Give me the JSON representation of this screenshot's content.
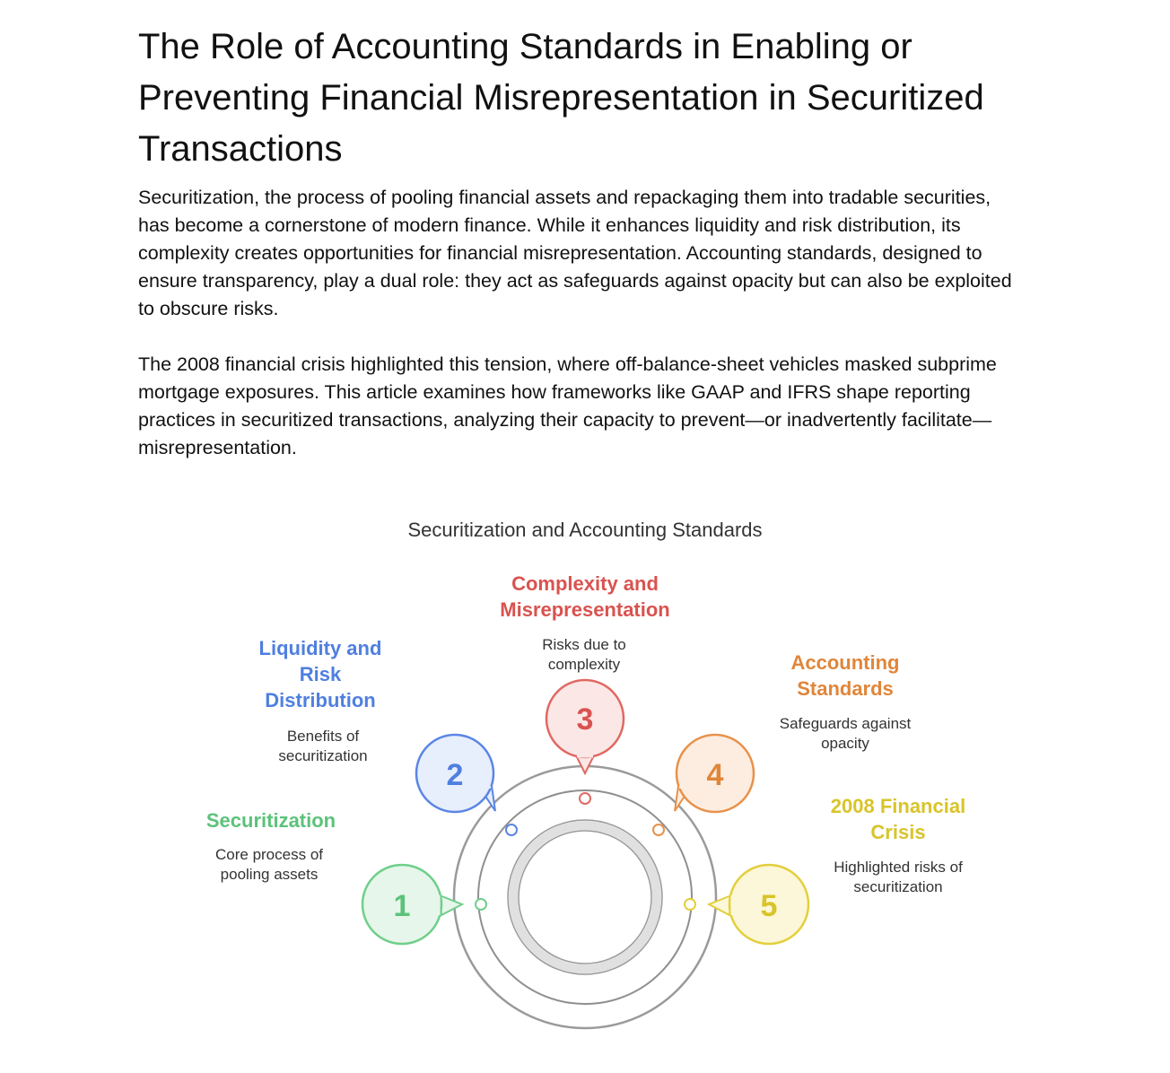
{
  "article": {
    "title": "The Role of Accounting Standards in Enabling or Preventing Financial Misrepresentation in Securitized Transactions",
    "paragraphs": [
      "Securitization, the process of pooling financial assets and repackaging them into tradable securities, has become a cornerstone of modern finance. While it enhances liquidity and risk distribution, its complexity creates opportunities for financial misrepresentation. Accounting standards, designed to ensure transparency, play a dual role: they act as safeguards against opacity but can also be exploited to obscure risks.",
      "The 2008 financial crisis highlighted this tension, where off-balance-sheet vehicles masked subprime mortgage exposures. This article examines how frameworks like GAAP and IFRS shape reporting practices in securitized transactions, analyzing their capacity to prevent—or inadvertently facilitate—misrepresentation."
    ]
  },
  "diagram": {
    "title": "Securitization and Accounting Standards",
    "steps": [
      {
        "number": "1",
        "label": "Securitization",
        "description": "Core process of pooling assets",
        "color": "#5cc27a",
        "fill": "#e6f6ea",
        "stroke": "#6fcf8a"
      },
      {
        "number": "2",
        "label": "Liquidity and Risk Distribution",
        "description": "Benefits of securitization",
        "color": "#4f7fe0",
        "fill": "#e7eefc",
        "stroke": "#5a85e4"
      },
      {
        "number": "3",
        "label": "Complexity and Misrepresentation",
        "description": "Risks due to complexity",
        "color": "#d9534f",
        "fill": "#fbe7e6",
        "stroke": "#e06862"
      },
      {
        "number": "4",
        "label": "Accounting Standards",
        "description": "Safeguards against opacity",
        "color": "#e0863a",
        "fill": "#fcede0",
        "stroke": "#e8914a"
      },
      {
        "number": "5",
        "label": "2008 Financial Crisis",
        "description": "Highlighted risks of securitization",
        "color": "#d9c429",
        "fill": "#fcf7d8",
        "stroke": "#e3cf3c"
      }
    ]
  }
}
